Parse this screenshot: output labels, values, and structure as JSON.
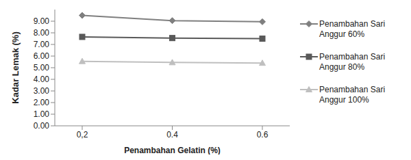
{
  "chart_data": {
    "type": "line",
    "x_label": "Penambahan Gelatin (%)",
    "y_label": "Kadar Lemak (%)",
    "categories": [
      "0,2",
      "0.4",
      "0.6"
    ],
    "series": [
      {
        "name": "Penambahan Sari Anggur 60%",
        "color": "#7f7f7f",
        "marker": "diamond",
        "values": [
          9.5,
          9.05,
          8.95
        ]
      },
      {
        "name": "Penambahan Sari Anggur 80%",
        "color": "#595959",
        "marker": "square",
        "values": [
          7.65,
          7.55,
          7.5
        ]
      },
      {
        "name": "Penambahan Sari Anggur 100%",
        "color": "#bfbfbf",
        "marker": "triangle",
        "values": [
          5.55,
          5.45,
          5.4
        ]
      }
    ],
    "ylim": [
      0,
      10
    ],
    "yticks": [
      {
        "value": 0,
        "label": "0.00"
      },
      {
        "value": 1,
        "label": "1.00"
      },
      {
        "value": 2,
        "label": "2.00"
      },
      {
        "value": 3,
        "label": "3.00"
      },
      {
        "value": 4,
        "label": "4.00"
      },
      {
        "value": 5,
        "label": "5.00"
      },
      {
        "value": 6,
        "label": "6.00"
      },
      {
        "value": 7,
        "label": "7.00"
      },
      {
        "value": 8,
        "label": "8.00"
      },
      {
        "value": 9,
        "label": "9.00"
      }
    ],
    "grid": false,
    "legend": "right"
  }
}
